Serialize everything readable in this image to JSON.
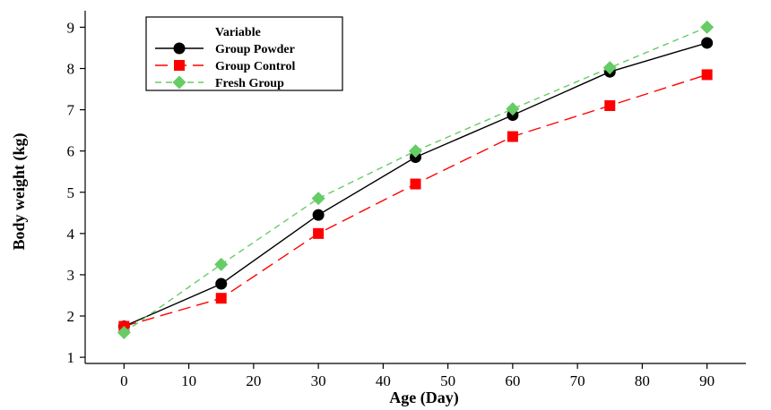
{
  "chart_data": {
    "type": "line",
    "xlabel": "Age (Day)",
    "ylabel": "Body weight (kg)",
    "xlim": [
      -6,
      96
    ],
    "ylim": [
      0.85,
      9.4
    ],
    "xticks": [
      0,
      10,
      20,
      30,
      40,
      50,
      60,
      70,
      80,
      90
    ],
    "yticks": [
      1,
      2,
      3,
      4,
      5,
      6,
      7,
      8,
      9
    ],
    "x": [
      0,
      15,
      30,
      45,
      60,
      75,
      90
    ],
    "grid": false,
    "legend": {
      "title": "Variable",
      "placement": "top-left"
    },
    "series": [
      {
        "name": "Group Powder",
        "values": [
          1.75,
          2.78,
          4.45,
          5.85,
          6.87,
          7.92,
          8.62
        ],
        "color": "#000000",
        "marker": "circle",
        "dash": ""
      },
      {
        "name": "Group Control",
        "values": [
          1.75,
          2.43,
          4.0,
          5.2,
          6.35,
          7.1,
          7.85
        ],
        "color": "#ff0000",
        "marker": "square",
        "dash": "14 7"
      },
      {
        "name": "Fresh Group",
        "values": [
          1.6,
          3.25,
          4.85,
          6.0,
          7.02,
          8.02,
          9.0
        ],
        "color": "#66cc66",
        "marker": "diamond",
        "dash": "7 5"
      }
    ]
  }
}
